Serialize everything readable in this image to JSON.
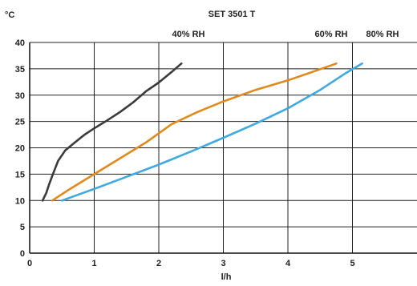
{
  "chart_data": {
    "type": "line",
    "title": "SET 3501 T",
    "ylabel": "°C",
    "xlabel": "l/h",
    "xlim": [
      0,
      6
    ],
    "ylim": [
      0,
      40
    ],
    "x_ticks": [
      "0",
      "1",
      "2",
      "3",
      "4",
      "5"
    ],
    "y_ticks": [
      "0",
      "5",
      "10",
      "15",
      "20",
      "25",
      "30",
      "35",
      "40"
    ],
    "grid": true,
    "legend": "series labels printed along the top",
    "series": [
      {
        "name": "40% RH",
        "color": "#3a3a3f",
        "x": [
          0.2,
          0.26,
          0.3,
          0.36,
          0.44,
          0.55,
          0.7,
          0.85,
          1.0,
          1.2,
          1.4,
          1.6,
          1.8,
          2.0,
          2.2,
          2.35
        ],
        "y": [
          10,
          11.5,
          13,
          15,
          17.5,
          19.5,
          21,
          22.5,
          23.7,
          25.2,
          26.8,
          28.6,
          30.7,
          32.4,
          34.4,
          36
        ]
      },
      {
        "name": "60% RH",
        "color": "#e08a1e",
        "x": [
          0.35,
          0.6,
          1.0,
          1.4,
          1.8,
          2.2,
          2.6,
          3.0,
          3.5,
          4.0,
          4.4,
          4.75
        ],
        "y": [
          10,
          12,
          15,
          18,
          21,
          24.5,
          26.8,
          28.8,
          31,
          32.8,
          34.5,
          36
        ]
      },
      {
        "name": "80% RH",
        "color": "#3fa9e0",
        "x": [
          0.5,
          1.0,
          1.5,
          2.0,
          2.5,
          3.0,
          3.5,
          4.0,
          4.5,
          4.9,
          5.15
        ],
        "y": [
          10,
          12.2,
          14.5,
          16.8,
          19.3,
          21.9,
          24.6,
          27.5,
          31,
          34.2,
          36
        ]
      }
    ]
  }
}
